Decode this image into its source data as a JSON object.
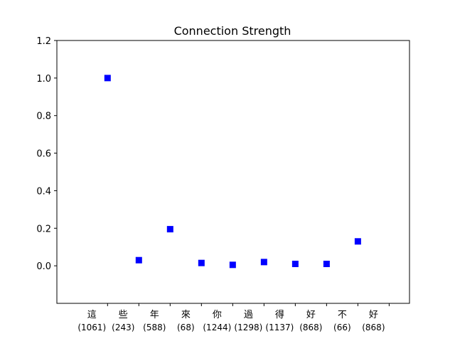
{
  "chart_data": {
    "type": "scatter",
    "title": "Connection Strength",
    "xlabel": "",
    "ylabel": "",
    "ylim": [
      -0.2,
      1.2
    ],
    "yticks": [
      "0.0",
      "0.2",
      "0.4",
      "0.6",
      "0.8",
      "1.0",
      "1.2"
    ],
    "ytick_values": [
      0.0,
      0.2,
      0.4,
      0.6,
      0.8,
      1.0,
      1.2
    ],
    "categories": [
      {
        "char": "這",
        "count": "(1061)"
      },
      {
        "char": "些",
        "count": "(243)"
      },
      {
        "char": "年",
        "count": "(588)"
      },
      {
        "char": "來",
        "count": "(68)"
      },
      {
        "char": "你",
        "count": "(1244)"
      },
      {
        "char": "過",
        "count": "(1298)"
      },
      {
        "char": "得",
        "count": "(1137)"
      },
      {
        "char": "好",
        "count": "(868)"
      },
      {
        "char": "不",
        "count": "(66)"
      },
      {
        "char": "好",
        "count": "(868)"
      }
    ],
    "points": [
      {
        "x": 0.5,
        "y": 1.0
      },
      {
        "x": 1.5,
        "y": 0.03
      },
      {
        "x": 2.5,
        "y": 0.195
      },
      {
        "x": 3.5,
        "y": 0.015
      },
      {
        "x": 4.5,
        "y": 0.005
      },
      {
        "x": 5.5,
        "y": 0.02
      },
      {
        "x": 6.5,
        "y": 0.01
      },
      {
        "x": 7.5,
        "y": 0.01
      },
      {
        "x": 8.5,
        "y": 0.13
      }
    ],
    "marker_color": "#0000ff",
    "marker": "square",
    "grid": false
  }
}
